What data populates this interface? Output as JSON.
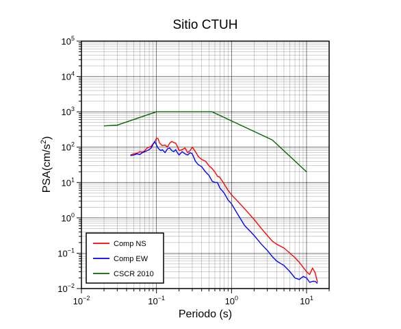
{
  "chart_data": {
    "type": "line",
    "title": "Sitio CTUH",
    "xlabel": "Periodo (s)",
    "ylabel_main": "PSA(cm/s",
    "ylabel_sup": "2",
    "ylabel_close": ")",
    "x_scale": "log",
    "y_scale": "log",
    "xlim": [
      0.01,
      20
    ],
    "ylim": [
      0.01,
      100000
    ],
    "grid": true,
    "legend_position": "bottom-left",
    "x_ticks": [
      {
        "value": 0.01,
        "base": "10",
        "exp": "−2"
      },
      {
        "value": 0.1,
        "base": "10",
        "exp": "−1"
      },
      {
        "value": 1,
        "base": "10",
        "exp": "0"
      },
      {
        "value": 10,
        "base": "10",
        "exp": "1"
      }
    ],
    "y_ticks": [
      {
        "value": 0.01,
        "base": "10",
        "exp": "−2"
      },
      {
        "value": 0.1,
        "base": "10",
        "exp": "−1"
      },
      {
        "value": 1,
        "base": "10",
        "exp": "0"
      },
      {
        "value": 10,
        "base": "10",
        "exp": "1"
      },
      {
        "value": 100,
        "base": "10",
        "exp": "2"
      },
      {
        "value": 1000,
        "base": "10",
        "exp": "3"
      },
      {
        "value": 10000,
        "base": "10",
        "exp": "4"
      },
      {
        "value": 100000,
        "base": "10",
        "exp": "5"
      }
    ],
    "series": [
      {
        "name": "Comp NS",
        "color": "#ff0000",
        "x": [
          0.045,
          0.05,
          0.055,
          0.06,
          0.065,
          0.07,
          0.075,
          0.08,
          0.085,
          0.09,
          0.095,
          0.1,
          0.105,
          0.11,
          0.115,
          0.12,
          0.13,
          0.14,
          0.15,
          0.16,
          0.17,
          0.18,
          0.19,
          0.2,
          0.22,
          0.24,
          0.26,
          0.28,
          0.3,
          0.33,
          0.36,
          0.4,
          0.45,
          0.5,
          0.55,
          0.6,
          0.65,
          0.7,
          0.8,
          0.9,
          1.0,
          1.2,
          1.5,
          2.0,
          2.5,
          3.0,
          3.5,
          4.0,
          5.0,
          6.0,
          7.0,
          8.0,
          9.0,
          10.0,
          11.0,
          12.0,
          13.0,
          14.0
        ],
        "y": [
          60,
          65,
          68,
          75,
          72,
          80,
          95,
          100,
          105,
          125,
          140,
          180,
          175,
          130,
          120,
          110,
          115,
          100,
          130,
          145,
          135,
          130,
          105,
          80,
          85,
          95,
          70,
          80,
          100,
          75,
          55,
          45,
          40,
          30,
          25,
          20,
          15,
          14,
          9,
          6,
          4.5,
          3.0,
          1.8,
          0.9,
          0.5,
          0.32,
          0.22,
          0.18,
          0.14,
          0.1,
          0.075,
          0.055,
          0.04,
          0.03,
          0.025,
          0.038,
          0.028,
          0.015
        ]
      },
      {
        "name": "Comp EW",
        "color": "#0000ff",
        "x": [
          0.045,
          0.05,
          0.055,
          0.06,
          0.065,
          0.07,
          0.075,
          0.08,
          0.085,
          0.09,
          0.095,
          0.1,
          0.105,
          0.11,
          0.115,
          0.12,
          0.13,
          0.14,
          0.15,
          0.16,
          0.17,
          0.18,
          0.19,
          0.2,
          0.22,
          0.24,
          0.26,
          0.28,
          0.3,
          0.33,
          0.36,
          0.4,
          0.45,
          0.5,
          0.55,
          0.6,
          0.65,
          0.7,
          0.8,
          0.9,
          1.0,
          1.2,
          1.5,
          2.0,
          2.5,
          3.0,
          3.5,
          4.0,
          5.0,
          6.0,
          7.0,
          8.0,
          9.0,
          10.0,
          11.0,
          12.0,
          13.0,
          14.0
        ],
        "y": [
          58,
          60,
          65,
          62,
          70,
          75,
          80,
          85,
          95,
          120,
          145,
          115,
          95,
          85,
          80,
          85,
          70,
          90,
          95,
          80,
          75,
          85,
          70,
          60,
          75,
          65,
          60,
          70,
          65,
          40,
          32,
          28,
          20,
          16,
          11,
          10,
          10,
          7,
          5,
          3.2,
          2.5,
          1.3,
          0.6,
          0.32,
          0.18,
          0.12,
          0.08,
          0.06,
          0.045,
          0.03,
          0.02,
          0.018,
          0.022,
          0.02,
          0.015,
          0.016,
          0.016,
          0.014
        ]
      },
      {
        "name": "CSCR 2010",
        "color": "#006400",
        "x": [
          0.02,
          0.03,
          0.1,
          0.55,
          3.5,
          10.0
        ],
        "y": [
          400,
          420,
          1000,
          1000,
          160,
          20
        ]
      }
    ]
  }
}
